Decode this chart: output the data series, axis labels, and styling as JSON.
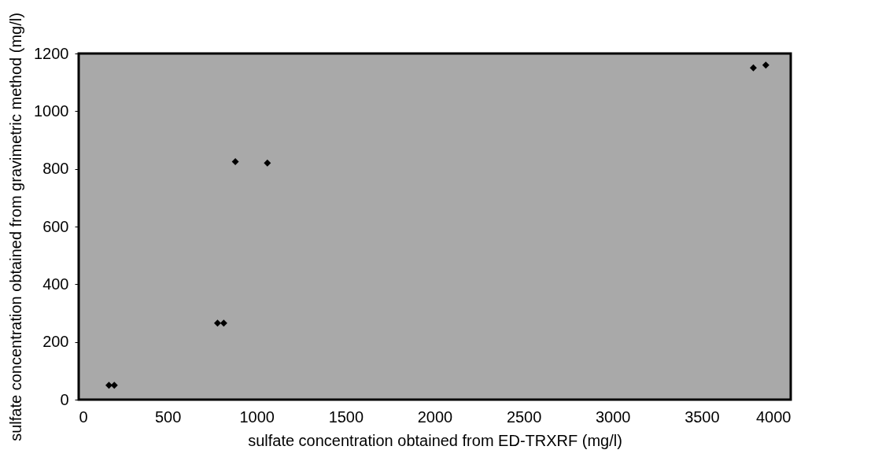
{
  "chart_data": {
    "type": "scatter",
    "xlabel": "sulfate concentration obtained from ED-TRXRF (mg/l)",
    "ylabel": "sulfate concentration obtained from gravimetric method (mg/l)",
    "x": [
      170,
      200,
      780,
      815,
      880,
      1060,
      3790,
      3860
    ],
    "series": [
      {
        "color": "#000000",
        "values": [
          50,
          50,
          265,
          265,
          825,
          820,
          1150,
          1160
        ]
      }
    ],
    "xlim": [
      0,
      4000
    ],
    "ylim": [
      0,
      1200
    ],
    "xticks": [
      0,
      500,
      1000,
      1500,
      2000,
      2500,
      3000,
      3500,
      4000
    ],
    "yticks": [
      0,
      200,
      400,
      600,
      800,
      1000,
      1200
    ],
    "marker": "diamond",
    "grid": false
  }
}
